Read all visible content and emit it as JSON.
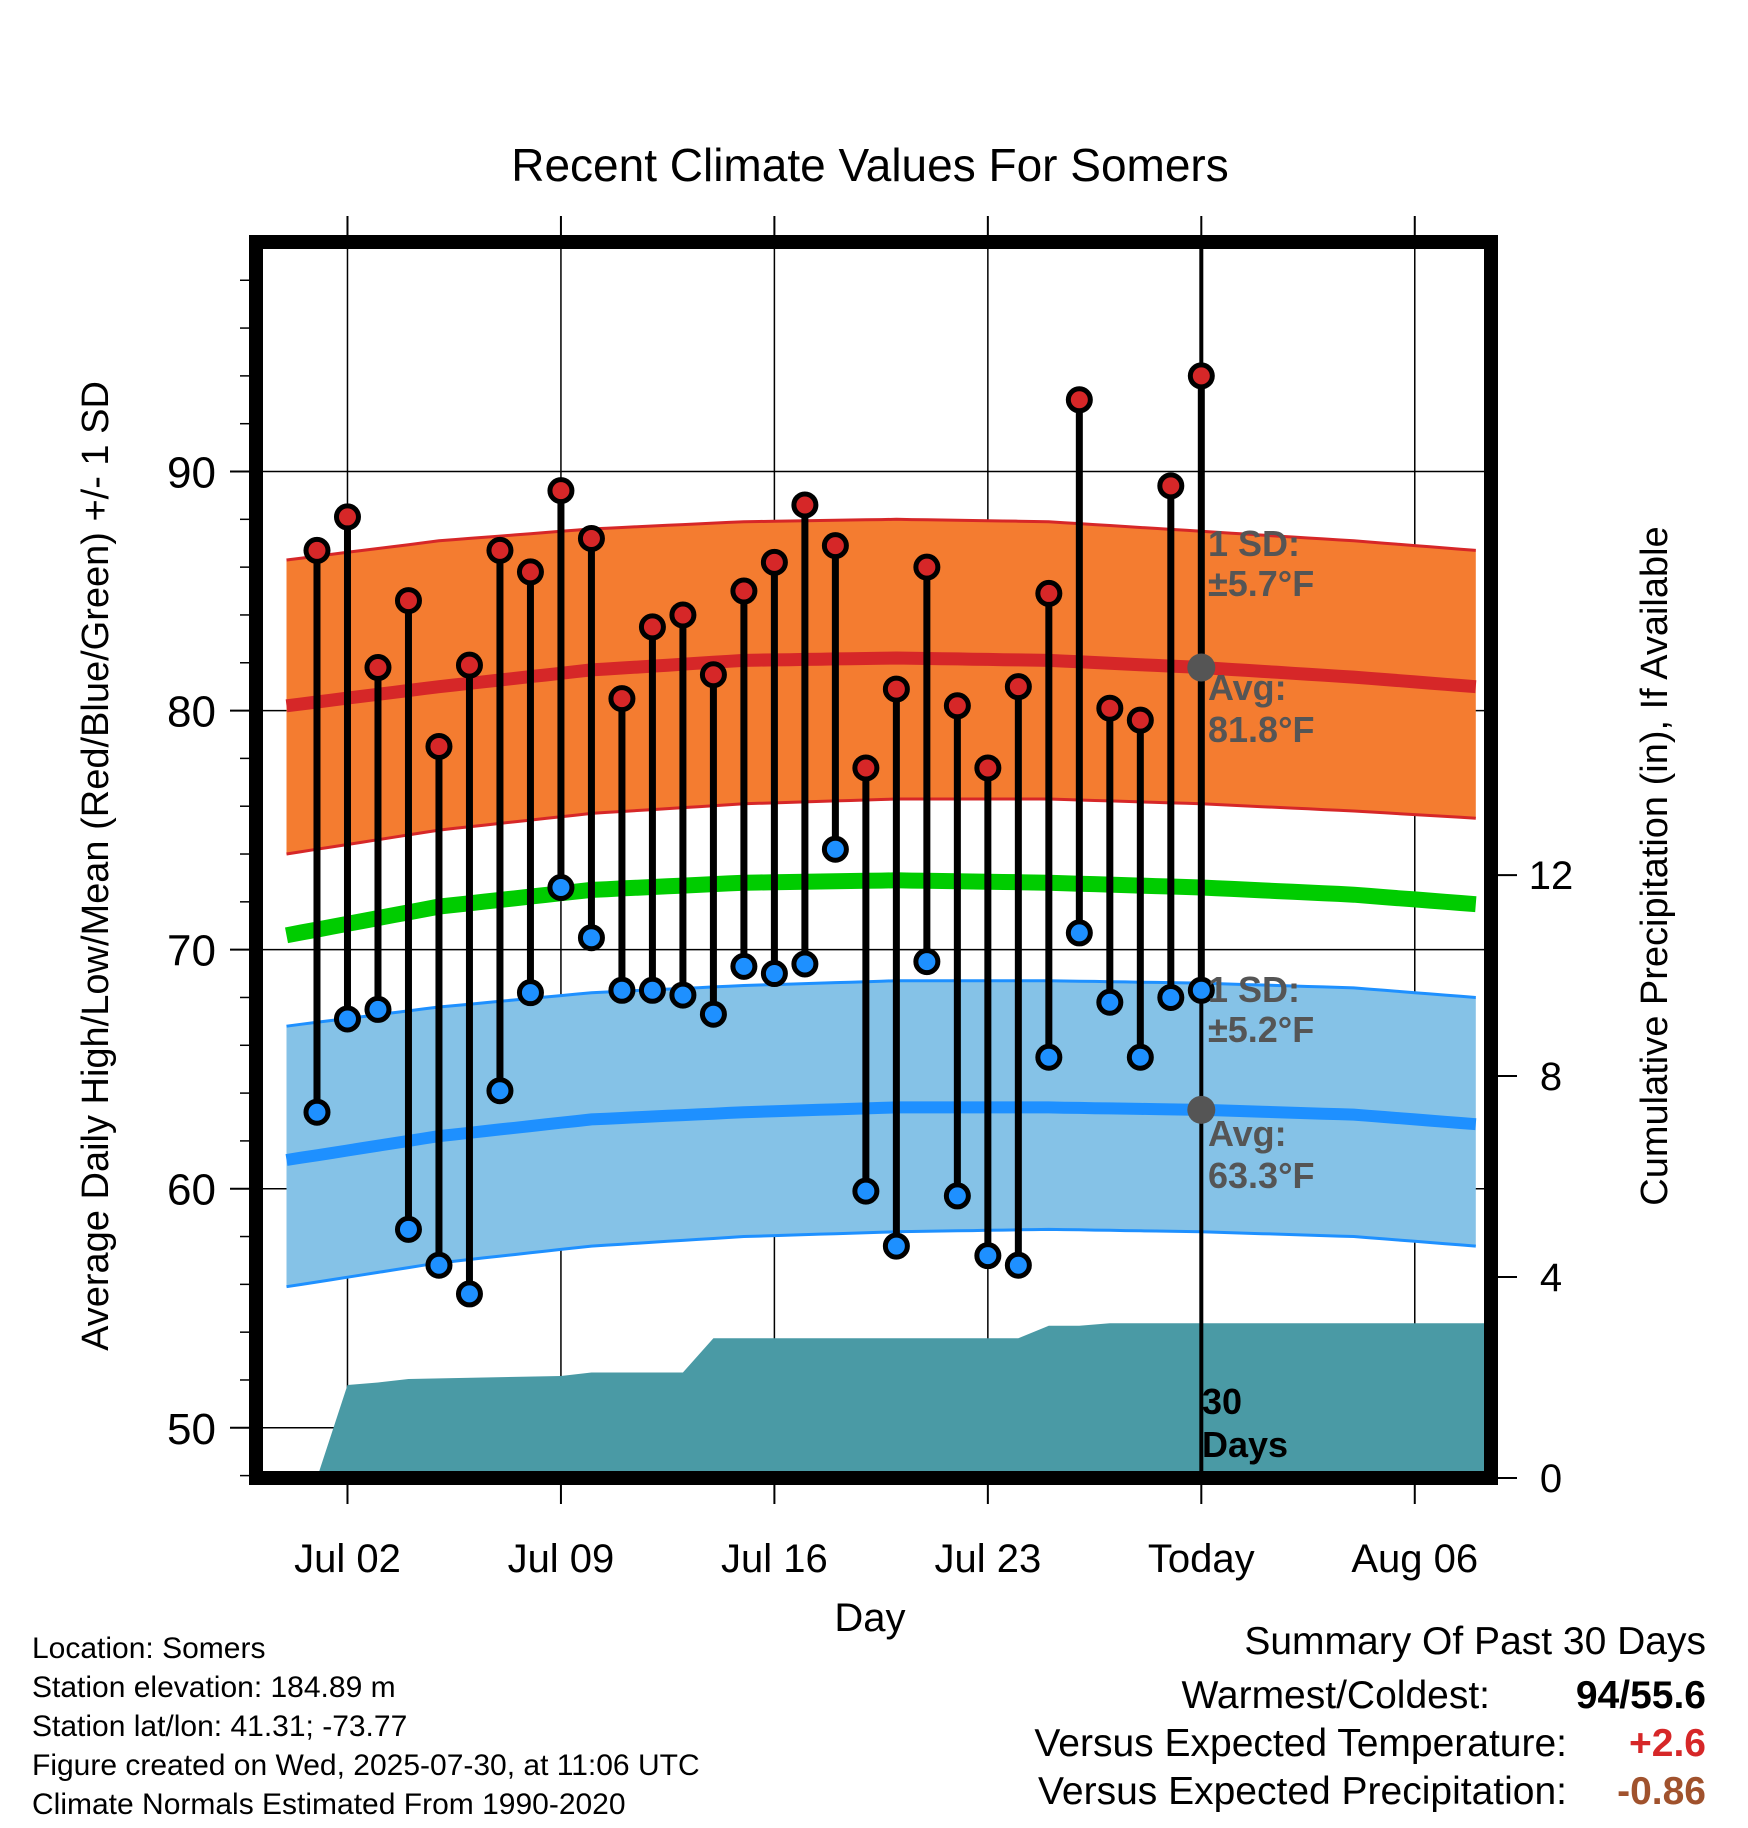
{
  "chart_data": {
    "type": "line",
    "title": "Recent Climate Values For Somers",
    "xlabel": "Day",
    "ylabel_left": "Average Daily High/Low/Mean (Red/Blue/Green) +/- 1 SD",
    "ylabel_right": "Cumulative Precipitation (in), If Available",
    "x_tick_labels": [
      "Jul 02",
      "Jul 09",
      "Jul 16",
      "Jul 23",
      "Today",
      "Aug 06"
    ],
    "x_tick_days": [
      2,
      9,
      16,
      23,
      30,
      37
    ],
    "x_range_days": [
      -1,
      39.5
    ],
    "y_left_ticks": [
      50,
      60,
      70,
      80,
      90
    ],
    "y_left_range": [
      47.9,
      99.6
    ],
    "y_right_ticks": [
      0,
      4,
      8,
      12
    ],
    "y_right_range": [
      0,
      24.6
    ],
    "days": [
      1,
      2,
      3,
      4,
      5,
      6,
      7,
      8,
      9,
      10,
      11,
      12,
      13,
      14,
      15,
      16,
      17,
      18,
      19,
      20,
      21,
      22,
      23,
      24,
      25,
      26,
      27,
      28,
      29,
      30
    ],
    "daily_high": [
      86.7,
      88.1,
      81.8,
      84.6,
      78.5,
      81.9,
      86.7,
      85.8,
      89.2,
      87.2,
      80.5,
      83.5,
      84.0,
      81.5,
      85.0,
      86.2,
      88.6,
      86.9,
      77.6,
      80.9,
      86.0,
      80.2,
      77.6,
      81.0,
      84.9,
      93.0,
      80.1,
      79.6,
      89.4,
      94.0
    ],
    "daily_low": [
      63.2,
      67.1,
      67.5,
      58.3,
      56.8,
      55.6,
      64.1,
      68.2,
      72.6,
      70.5,
      68.3,
      68.3,
      68.1,
      67.3,
      69.3,
      69.0,
      69.4,
      74.2,
      59.9,
      57.6,
      69.5,
      59.7,
      57.2,
      56.8,
      65.5,
      70.7,
      67.8,
      65.5,
      68.0,
      68.3
    ],
    "normals": {
      "days": [
        0,
        5,
        10,
        15,
        20,
        25,
        30,
        35,
        39
      ],
      "high_avg": [
        80.2,
        81.0,
        81.7,
        82.1,
        82.2,
        82.1,
        81.8,
        81.4,
        81.0
      ],
      "high_upper": [
        86.3,
        87.1,
        87.6,
        87.9,
        88.0,
        87.9,
        87.5,
        87.1,
        86.7
      ],
      "high_lower": [
        74.0,
        75.0,
        75.7,
        76.1,
        76.3,
        76.3,
        76.1,
        75.8,
        75.5
      ],
      "mean_avg": [
        70.6,
        71.8,
        72.5,
        72.8,
        72.9,
        72.8,
        72.6,
        72.3,
        71.9
      ],
      "low_avg": [
        61.2,
        62.2,
        62.9,
        63.2,
        63.4,
        63.4,
        63.3,
        63.1,
        62.7
      ],
      "low_upper": [
        66.8,
        67.6,
        68.2,
        68.5,
        68.7,
        68.7,
        68.6,
        68.4,
        68.0
      ],
      "low_lower": [
        55.9,
        56.9,
        57.6,
        58.0,
        58.2,
        58.3,
        58.2,
        58.0,
        57.6
      ]
    },
    "precip_cumulative": {
      "days": [
        1,
        2,
        3,
        4,
        9,
        10,
        13,
        14,
        24,
        25,
        26,
        27,
        30,
        39.4
      ],
      "values": [
        0,
        1.85,
        1.9,
        1.97,
        2.03,
        2.1,
        2.1,
        2.78,
        2.78,
        3.03,
        3.03,
        3.08,
        3.08,
        3.08
      ]
    },
    "today_day": 30,
    "series_colors": {
      "high": "#d62728",
      "low": "#1e90ff",
      "high_band": "#f47c30",
      "low_band": "#85c2e7",
      "mean": "#00cc00",
      "precip": "#4a9aa5",
      "annotation": "#555555"
    },
    "annotations": {
      "high_sd_line1": "1 SD:",
      "high_sd_line2": "±5.7°F",
      "high_avg_line1": "Avg:",
      "high_avg_line2": "81.8°F",
      "low_sd_line1": "1 SD:",
      "low_sd_line2": "±5.2°F",
      "low_avg_line1": "Avg:",
      "low_avg_line2": "63.3°F",
      "days_line1": "30",
      "days_line2": "Days"
    }
  },
  "info": {
    "location": "Location: Somers",
    "elevation": "Station elevation: 184.89 m",
    "latlon": "Station lat/lon: 41.31; -73.77",
    "created": "Figure created on Wed, 2025-07-30, at 11:06 UTC",
    "normals": "Climate Normals Estimated From 1990-2020"
  },
  "summary": {
    "title": "Summary Of Past 30 Days",
    "warm_cold_label": "Warmest/Coldest:",
    "warm_value": "94",
    "cold_value": "55.6",
    "temp_label": "Versus Expected Temperature:",
    "temp_value": "+2.6",
    "temp_color": "#d62728",
    "precip_label": "Versus Expected Precipitation:",
    "precip_value": "-0.86",
    "precip_color": "#a0522d"
  }
}
